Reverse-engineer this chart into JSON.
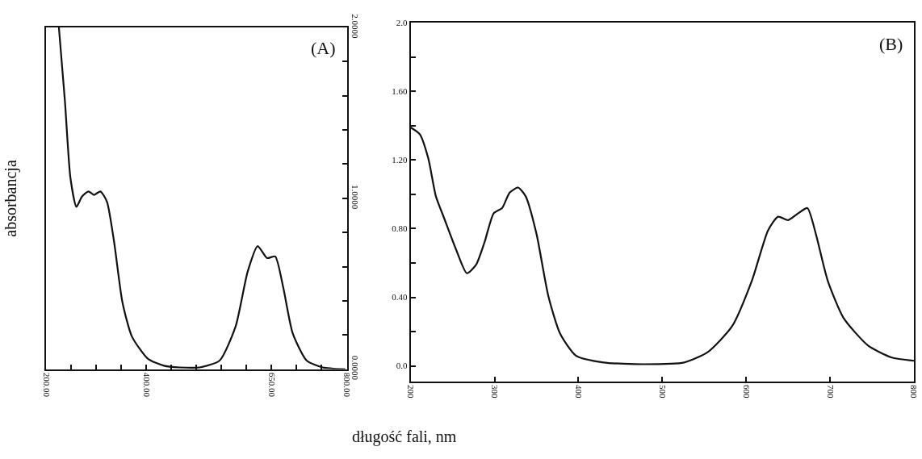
{
  "chart_data": [
    {
      "type": "line",
      "title": "(A)",
      "ylabel": "absorbancja",
      "xlim": [
        200,
        800
      ],
      "xticks": [
        {
          "value": 200,
          "label": "200.00"
        },
        {
          "value": 250,
          "label": null
        },
        {
          "value": 300,
          "label": null
        },
        {
          "value": 350,
          "label": null
        },
        {
          "value": 400,
          "label": "400.00"
        },
        {
          "value": 450,
          "label": null
        },
        {
          "value": 500,
          "label": null
        },
        {
          "value": 550,
          "label": null
        },
        {
          "value": 600,
          "label": null
        },
        {
          "value": 650,
          "label": "650.00"
        },
        {
          "value": 700,
          "label": null
        },
        {
          "value": 750,
          "label": null
        },
        {
          "value": 800,
          "label": "800.00"
        }
      ],
      "y2lim": [
        0,
        2.0
      ],
      "y2ticks": [
        {
          "value": 0,
          "label": "0.0000"
        },
        {
          "value": 0.2,
          "label": null
        },
        {
          "value": 0.4,
          "label": null
        },
        {
          "value": 0.6,
          "label": null
        },
        {
          "value": 0.8,
          "label": null
        },
        {
          "value": 1.0,
          "label": "1.0000"
        },
        {
          "value": 1.2,
          "label": null
        },
        {
          "value": 1.4,
          "label": null
        },
        {
          "value": 1.6,
          "label": null
        },
        {
          "value": 1.8,
          "label": null
        },
        {
          "value": 2.0,
          "label": "2.0000"
        }
      ],
      "marker": "none",
      "line_style": "solid",
      "series": [
        {
          "color": "#111111",
          "axis": "y2",
          "x": [
            225,
            237,
            248,
            260,
            271,
            284,
            295,
            308,
            321,
            335,
            352,
            371,
            403,
            435,
            467,
            506,
            546,
            578,
            602,
            622,
            641,
            657,
            673,
            692,
            720,
            752,
            797
          ],
          "values": [
            2.0,
            1.57,
            1.12,
            0.95,
            1.01,
            1.04,
            1.02,
            1.04,
            0.98,
            0.75,
            0.39,
            0.19,
            0.06,
            0.02,
            0.01,
            0.01,
            0.05,
            0.25,
            0.57,
            0.72,
            0.65,
            0.66,
            0.48,
            0.21,
            0.05,
            0.01,
            0.0
          ]
        }
      ]
    },
    {
      "type": "line",
      "title": "(B)",
      "xlabel": "długość fali, nm",
      "xlim": [
        200,
        800
      ],
      "xticks": [
        200,
        300,
        400,
        500,
        600,
        700,
        800
      ],
      "ylim": [
        -0.09,
        2.0
      ],
      "yticks": [
        {
          "value": 0,
          "label": "0.0"
        },
        {
          "value": 0.2,
          "label": null
        },
        {
          "value": 0.4,
          "label": "0.40"
        },
        {
          "value": 0.6,
          "label": null
        },
        {
          "value": 0.8,
          "label": "0.80"
        },
        {
          "value": 1.0,
          "label": null
        },
        {
          "value": 1.2,
          "label": "1.20"
        },
        {
          "value": 1.4,
          "label": null
        },
        {
          "value": 1.6,
          "label": "1.60"
        },
        {
          "value": 1.8,
          "label": null
        },
        {
          "value": 2.0,
          "label": "2.0"
        }
      ],
      "marker": "none",
      "line_style": "solid",
      "series": [
        {
          "color": "#111111",
          "x": [
            200,
            211,
            221,
            230,
            240,
            254,
            267,
            278,
            288,
            299,
            309,
            318,
            328,
            337,
            350,
            364,
            378,
            397,
            430,
            478,
            526,
            554,
            583,
            607,
            626,
            638,
            650,
            662,
            673,
            683,
            697,
            716,
            745,
            773,
            800
          ],
          "values": [
            1.39,
            1.35,
            1.21,
            0.99,
            0.86,
            0.68,
            0.54,
            0.59,
            0.72,
            0.89,
            0.92,
            1.01,
            1.04,
            0.99,
            0.77,
            0.41,
            0.19,
            0.06,
            0.02,
            0.01,
            0.02,
            0.08,
            0.23,
            0.5,
            0.79,
            0.87,
            0.85,
            0.89,
            0.92,
            0.77,
            0.5,
            0.28,
            0.12,
            0.05,
            0.03
          ]
        }
      ]
    }
  ]
}
